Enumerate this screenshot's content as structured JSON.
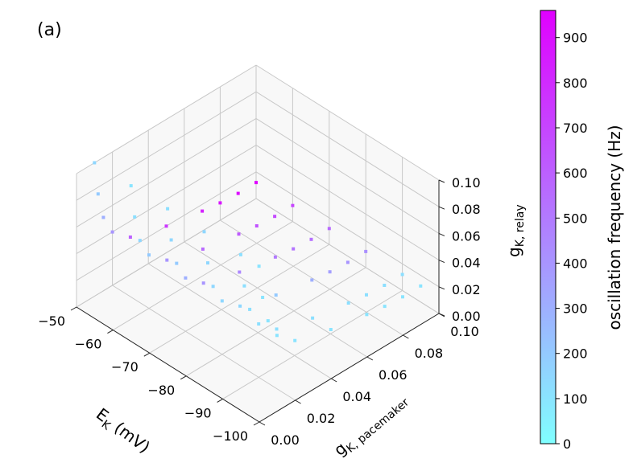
{
  "chart_data": {
    "type": "scatter",
    "panel_label": "(a)",
    "projection": "3d",
    "axes": {
      "x": {
        "label_main": "E",
        "label_sub": "K",
        "label_unit": " (mV)",
        "range": [
          -100,
          -50
        ],
        "ticks": [
          -100,
          -90,
          -80,
          -70,
          -60,
          -50
        ],
        "tick_labels": [
          "−100",
          "−90",
          "−80",
          "−70",
          "−60",
          "−50"
        ]
      },
      "y": {
        "label_main": "g",
        "label_sub": "K, pacemaker",
        "range": [
          0,
          0.1
        ],
        "ticks": [
          0,
          0.02,
          0.04,
          0.06,
          0.08,
          0.1
        ],
        "tick_labels": [
          "0.00",
          "0.02",
          "0.04",
          "0.06",
          "0.08",
          "0.10"
        ]
      },
      "z": {
        "label_main": "g",
        "label_sub": "K, relay",
        "range": [
          0,
          0.1
        ],
        "ticks": [
          0,
          0.02,
          0.04,
          0.06,
          0.08,
          0.1
        ],
        "tick_labels": [
          "0.00",
          "0.02",
          "0.04",
          "0.06",
          "0.08",
          "0.10"
        ]
      }
    },
    "grid": true,
    "colorbar": {
      "label": "oscillation frequency (Hz)",
      "range": [
        0,
        960
      ],
      "ticks": [
        0,
        100,
        200,
        300,
        400,
        500,
        600,
        700,
        800,
        900
      ],
      "tick_labels": [
        "0",
        "100",
        "200",
        "300",
        "400",
        "500",
        "600",
        "700",
        "800",
        "900"
      ],
      "colormap": "cool",
      "color_low": "#80ffff",
      "color_high": "#e000ff"
    },
    "series": [
      {
        "E_K": -95,
        "points": [
          [
            0.01,
            0.1,
            100
          ],
          [
            0.012,
            0.075,
            100
          ],
          [
            0.015,
            0.055,
            100
          ],
          [
            0.02,
            0.04,
            100
          ],
          [
            0.03,
            0.028,
            100
          ],
          [
            0.05,
            0.02,
            100
          ],
          [
            0.07,
            0.015,
            100
          ],
          [
            0.08,
            0.013,
            100
          ],
          [
            0.09,
            0.012,
            100
          ],
          [
            0.1,
            0.012,
            100
          ]
        ]
      },
      {
        "E_K": -90,
        "points": [
          [
            0.01,
            0.1,
            120
          ],
          [
            0.012,
            0.075,
            120
          ],
          [
            0.015,
            0.055,
            120
          ],
          [
            0.02,
            0.04,
            120
          ],
          [
            0.03,
            0.028,
            120
          ],
          [
            0.05,
            0.02,
            120
          ],
          [
            0.07,
            0.015,
            120
          ],
          [
            0.08,
            0.013,
            120
          ],
          [
            0.09,
            0.012,
            120
          ],
          [
            0.1,
            0.012,
            120
          ]
        ]
      },
      {
        "E_K": -80,
        "points": [
          [
            0.01,
            0.1,
            150
          ],
          [
            0.012,
            0.075,
            150
          ],
          [
            0.015,
            0.055,
            150
          ],
          [
            0.02,
            0.04,
            150
          ],
          [
            0.03,
            0.028,
            150
          ],
          [
            0.05,
            0.02,
            200
          ],
          [
            0.07,
            0.015,
            300
          ],
          [
            0.08,
            0.013,
            360
          ],
          [
            0.09,
            0.012,
            400
          ],
          [
            0.1,
            0.012,
            420
          ]
        ]
      },
      {
        "E_K": -70,
        "points": [
          [
            0.01,
            0.1,
            120
          ],
          [
            0.012,
            0.075,
            150
          ],
          [
            0.015,
            0.055,
            200
          ],
          [
            0.02,
            0.04,
            300
          ],
          [
            0.03,
            0.028,
            400
          ],
          [
            0.05,
            0.02,
            450
          ],
          [
            0.07,
            0.015,
            500
          ],
          [
            0.08,
            0.013,
            520
          ],
          [
            0.09,
            0.012,
            540
          ],
          [
            0.1,
            0.012,
            560
          ]
        ]
      },
      {
        "E_K": -60,
        "points": [
          [
            0.01,
            0.1,
            100
          ],
          [
            0.012,
            0.075,
            120
          ],
          [
            0.015,
            0.055,
            150
          ],
          [
            0.02,
            0.04,
            200
          ],
          [
            0.03,
            0.028,
            400
          ],
          [
            0.05,
            0.02,
            560
          ],
          [
            0.07,
            0.015,
            620
          ],
          [
            0.08,
            0.013,
            650
          ],
          [
            0.09,
            0.012,
            680
          ],
          [
            0.1,
            0.012,
            700
          ]
        ]
      },
      {
        "E_K": -50,
        "points": [
          [
            0.01,
            0.1,
            150
          ],
          [
            0.012,
            0.075,
            200
          ],
          [
            0.015,
            0.055,
            300
          ],
          [
            0.02,
            0.04,
            400
          ],
          [
            0.03,
            0.028,
            600
          ],
          [
            0.05,
            0.02,
            760
          ],
          [
            0.07,
            0.015,
            840
          ],
          [
            0.08,
            0.013,
            880
          ],
          [
            0.09,
            0.012,
            920
          ],
          [
            0.1,
            0.012,
            950
          ]
        ]
      }
    ]
  }
}
